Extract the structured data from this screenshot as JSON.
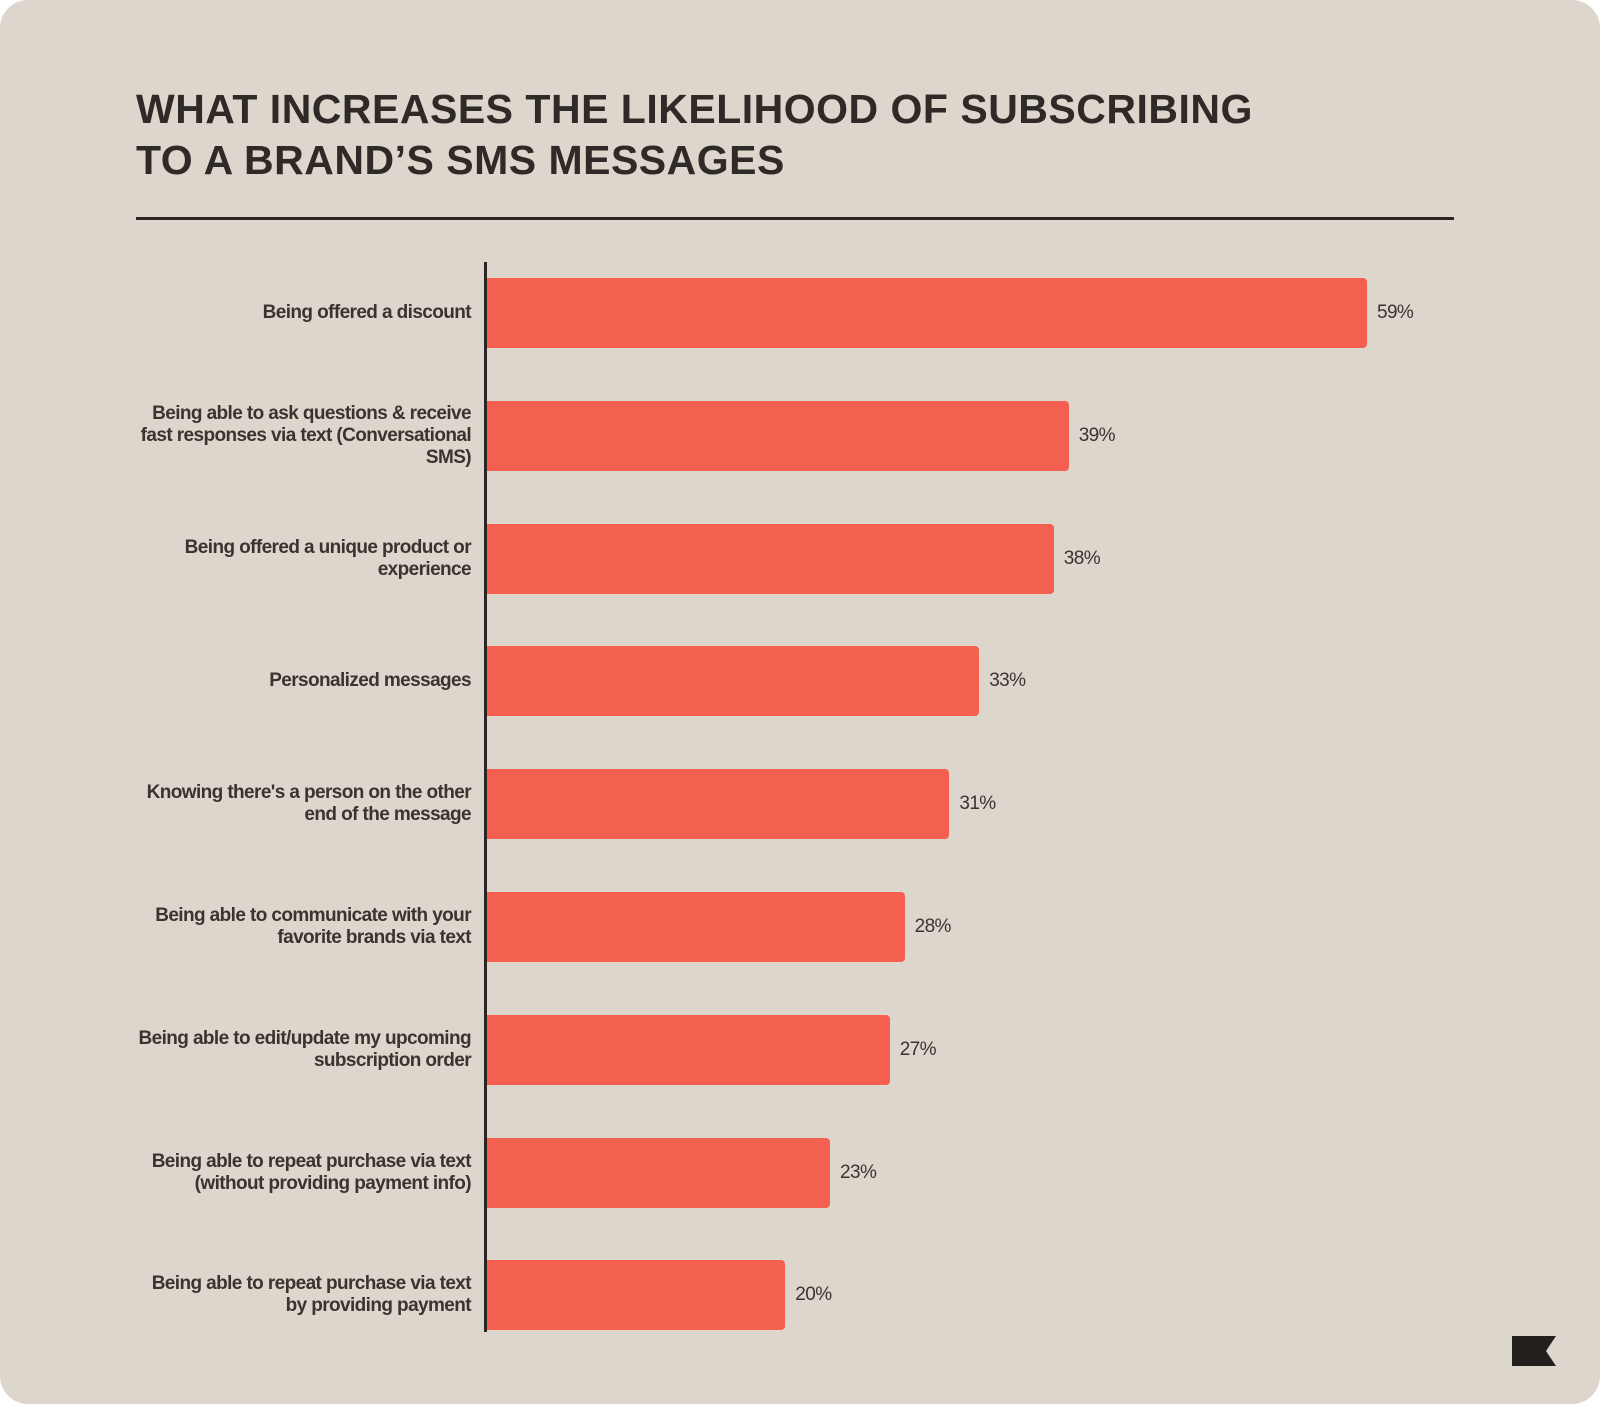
{
  "chart_data": {
    "type": "bar",
    "orientation": "horizontal",
    "title": "WHAT INCREASES THE LIKELIHOOD OF SUBSCRIBING TO A BRAND’S SMS MESSAGES",
    "categories": [
      "Being offered a discount",
      "Being able to ask questions & receive fast responses via text (Conversational SMS)",
      "Being offered a unique product or experience",
      "Personalized messages",
      "Knowing there's a person on the other end of the message",
      "Being able to communicate with your favorite brands via text",
      "Being able to edit/update my upcoming subscription order",
      "Being able to repeat purchase via text (without providing payment info)",
      "Being able to repeat purchase via text by providing payment"
    ],
    "values": [
      59,
      39,
      38,
      33,
      31,
      28,
      27,
      23,
      20
    ],
    "value_labels": [
      "59%",
      "39%",
      "38%",
      "33%",
      "31%",
      "28%",
      "27%",
      "23%",
      "20%"
    ],
    "color": "#f4604f"
  }
}
